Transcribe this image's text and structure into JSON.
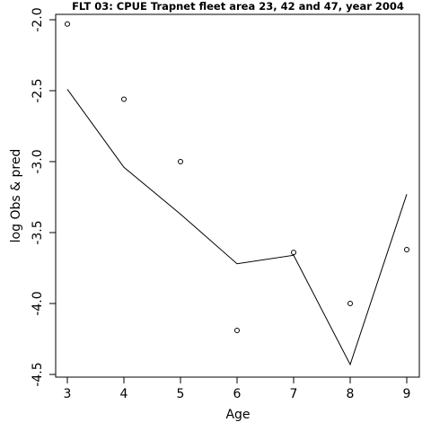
{
  "chart_data": {
    "type": "line",
    "title": "FLT 03: CPUE Trapnet fleet area 23, 42 and 47, year 2004",
    "xlabel": "Age",
    "ylabel": "log Obs & pred",
    "x": [
      3,
      4,
      5,
      6,
      7,
      8,
      9
    ],
    "xticks": [
      "3",
      "4",
      "5",
      "6",
      "7",
      "8",
      "9"
    ],
    "yticks": [
      "-2.0",
      "-2.5",
      "-3.0",
      "-3.5",
      "-4.0",
      "-4.5"
    ],
    "yticks_values": [
      -2.0,
      -2.5,
      -3.0,
      -3.5,
      -4.0,
      -4.5
    ],
    "xlim": [
      2.9,
      9.2
    ],
    "ylim": [
      -4.5,
      -2.0
    ],
    "grid": false,
    "series": [
      {
        "role": "observed",
        "style": "points",
        "values": [
          -2.03,
          -2.56,
          -3.0,
          -4.19,
          -3.64,
          -4.0,
          -3.62
        ]
      },
      {
        "role": "predicted",
        "style": "line",
        "values": [
          -2.49,
          -3.04,
          -3.37,
          -3.72,
          -3.66,
          -4.43,
          -3.23
        ]
      }
    ]
  }
}
